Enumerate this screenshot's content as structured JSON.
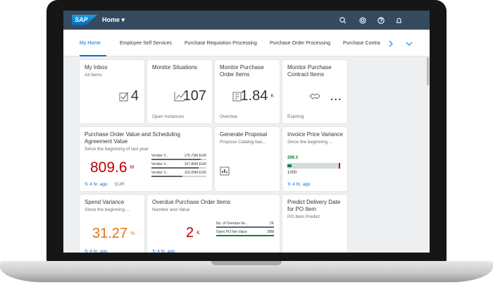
{
  "header": {
    "logo": "SAP",
    "title": "Home"
  },
  "tabs": [
    "My Home",
    "Employee Self Services",
    "Purchase Requisition Processing",
    "Purchase Order Processing",
    "Purchase Contra"
  ],
  "tiles": [
    {
      "title": "My Inbox",
      "subtitle": "All Items",
      "value": "4"
    },
    {
      "title": "Monitor Situations",
      "value": "107",
      "footer": "Open Instances"
    },
    {
      "title": "Monitor Purchase Order Items",
      "value": "1.84",
      "unit": "K",
      "footer": "Overdue"
    },
    {
      "title": "Monitor Purchase Contract Items",
      "value": "...",
      "footer": "Expiring"
    },
    {
      "title": "Purchase Order Value and Scheduling Agreement Value",
      "subtitle": "Since the beginning of last year",
      "value": "809.6",
      "unit": "M",
      "refreshed": "4 hr. ago",
      "footer": "EUR",
      "bars": [
        {
          "label": "Vendor V...",
          "value": "175.73M EUR"
        },
        {
          "label": "Vendor V...",
          "value": "167.86M EUR"
        },
        {
          "label": "Vendor V...",
          "value": "110.00M EUR"
        }
      ]
    },
    {
      "title": "Generate Proposal",
      "subtitle": "Propose Catalog bas..."
    },
    {
      "title": "Invoice Price Variance",
      "subtitle": "Since the beginning ...",
      "value": "299.3",
      "target": "1000",
      "refreshed": "4 hr. ago"
    },
    {
      "title": "Spend Variance",
      "subtitle": "Since the beginning ...",
      "value": "31.27",
      "unit": "%",
      "refreshed": "4 hr. ago"
    },
    {
      "title": "Overdue Purchase Order Items",
      "subtitle": "Number and Value",
      "value": "2",
      "unit": "K",
      "refreshed": "4 hr. ago",
      "bars": [
        {
          "label": "No. of Overdue Ite...",
          "value": "2K"
        },
        {
          "label": "Open PO Net Value",
          "value": "38M"
        }
      ]
    },
    {
      "title": "Predict Delivery Date for PO Item",
      "subtitle": "PO Item Predict"
    }
  ]
}
